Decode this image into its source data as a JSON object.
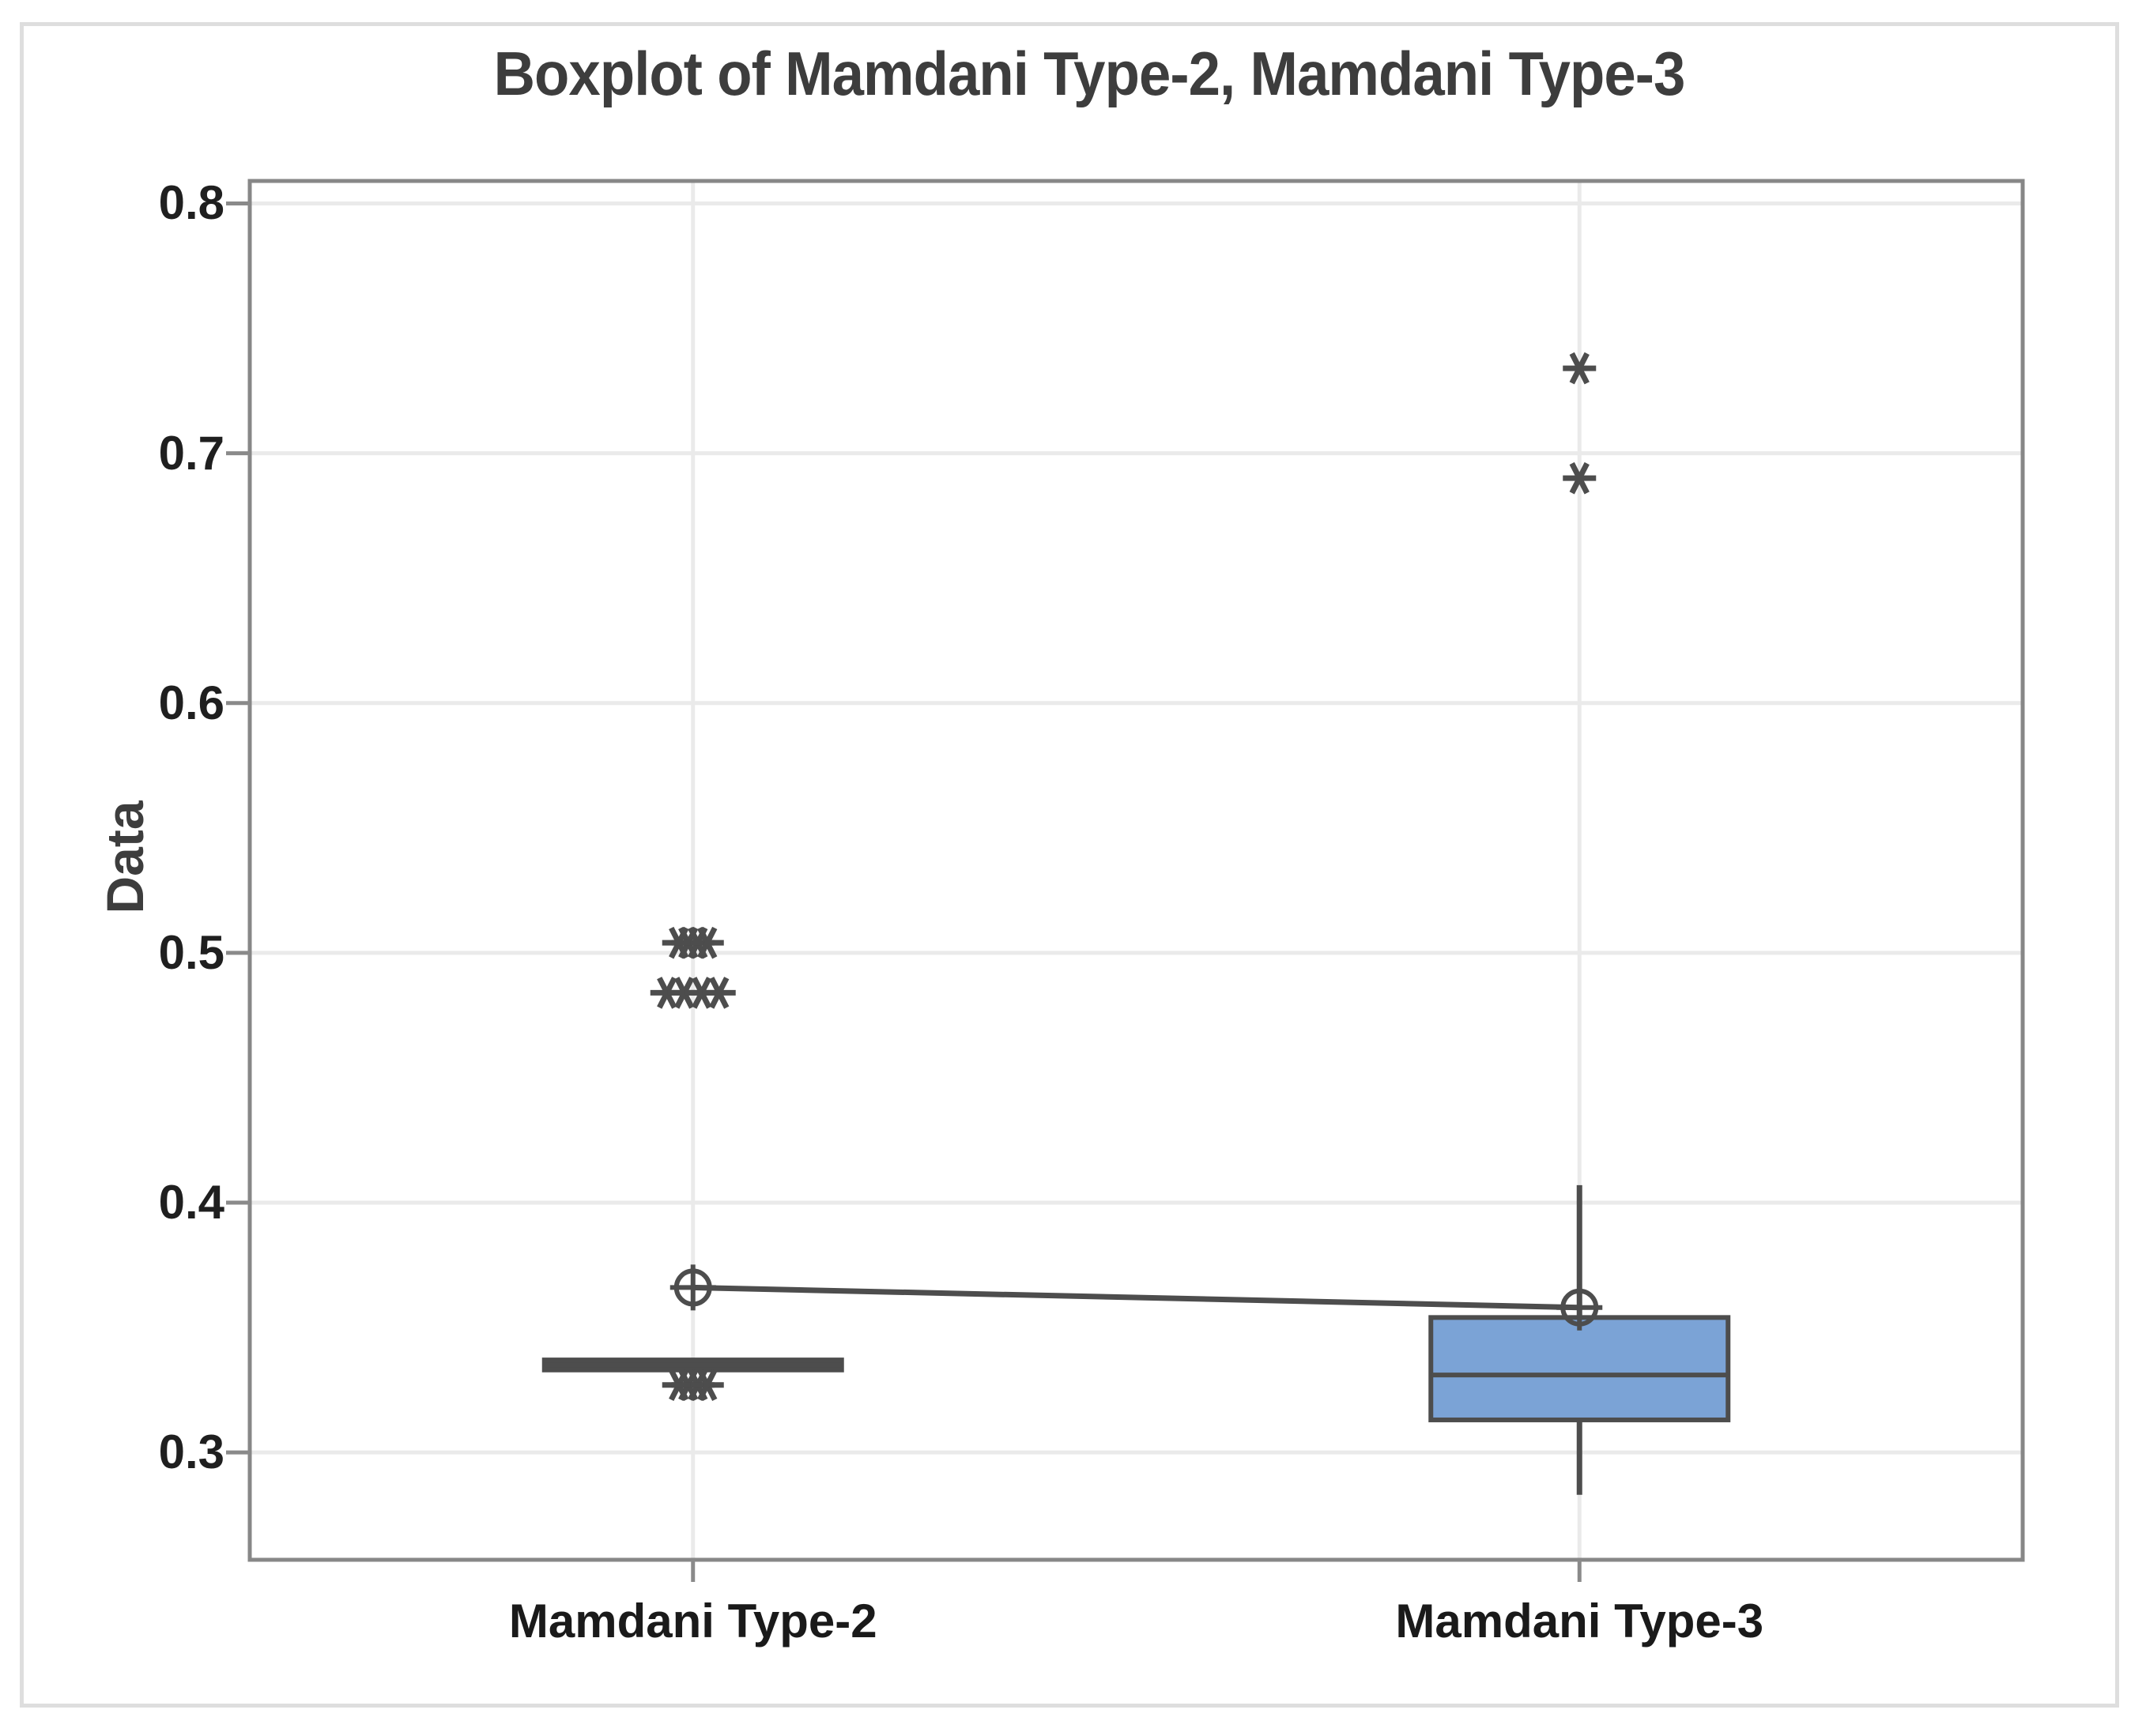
{
  "figure": {
    "title": "Boxplot of Mamdani Type-2, Mamdani Type-3",
    "background": "#ffffff",
    "frame_color": "#dedede"
  },
  "chart_data": {
    "type": "boxplot",
    "title": "Boxplot of Mamdani Type-2, Mamdani Type-3",
    "xlabel": "",
    "ylabel": "Data",
    "categories": [
      "Mamdani Type-2",
      "Mamdani Type-3"
    ],
    "yticks": [
      {
        "value": 0.3,
        "label": "0.3"
      },
      {
        "value": 0.4,
        "label": "0.4"
      },
      {
        "value": 0.5,
        "label": "0.5"
      },
      {
        "value": 0.6,
        "label": "0.6"
      },
      {
        "value": 0.7,
        "label": "0.7"
      },
      {
        "value": 0.8,
        "label": "0.8"
      }
    ],
    "ylim": [
      0.257,
      0.809
    ],
    "grid": {
      "horizontal": true,
      "vertical_at_categories": true
    },
    "mean_connect_line": true,
    "marker_styles": {
      "mean": "circle-plus",
      "outlier": "asterisk"
    },
    "series": [
      {
        "name": "Mamdani Type-2",
        "q1": 0.333,
        "median": 0.335,
        "q3": 0.337,
        "whisker_low": 0.333,
        "whisker_high": 0.337,
        "mean": 0.366,
        "collapsed_box": true,
        "outliers": [
          {
            "value": 0.504,
            "x_offsets": [
              -18,
              -6,
              6,
              18
            ]
          },
          {
            "value": 0.484,
            "x_offsets": [
              -33,
              -11,
              11,
              33
            ]
          },
          {
            "value": 0.327,
            "x_offsets": [
              -18,
              -6,
              6,
              18
            ]
          }
        ]
      },
      {
        "name": "Mamdani Type-3",
        "q1": 0.313,
        "median": 0.331,
        "q3": 0.354,
        "whisker_low": 0.283,
        "whisker_high": 0.407,
        "mean": 0.358,
        "collapsed_box": false,
        "outliers": [
          {
            "value": 0.734,
            "x_offsets": [
              0
            ]
          },
          {
            "value": 0.69,
            "x_offsets": [
              0
            ]
          }
        ]
      }
    ],
    "colors": {
      "box_fill": "#7ba3d6",
      "line": "#4d4d4d",
      "grid": "#eaeaea",
      "axis_border": "#878787",
      "tick": "#8a8a8a",
      "tick_text": "#1f1f1f",
      "title_text": "#3d3d3d"
    }
  }
}
